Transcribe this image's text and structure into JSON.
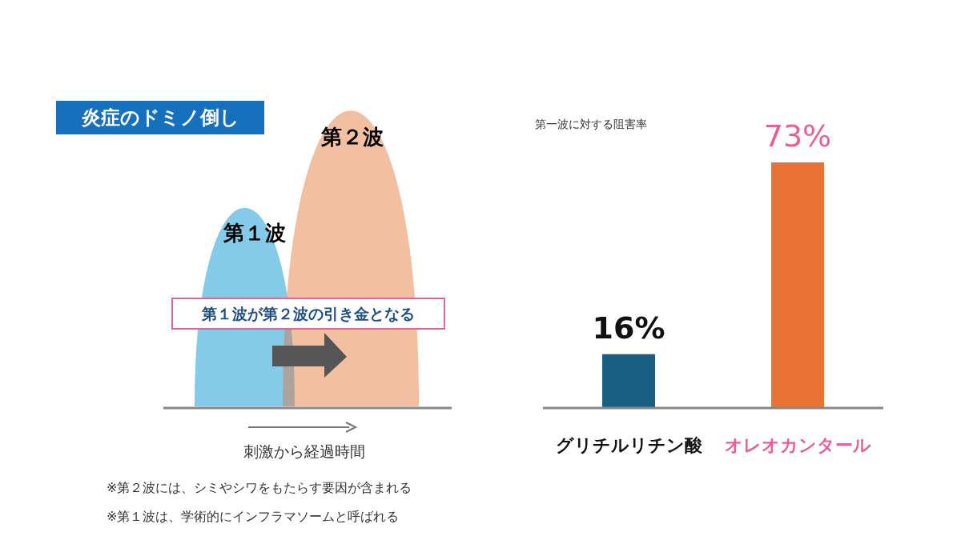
{
  "chart_data": [
    {
      "type": "other",
      "title": "炎症のドミノ倒し",
      "annotations": [
        "第１波",
        "第２波",
        "第１波が第２波の引き金となる",
        "刺激から経過時間",
        "※第２波には、シミやシワをもたらす要因が含まれる",
        "※第１波は、学術的にインフラマソームと呼ばれる"
      ]
    },
    {
      "type": "bar",
      "title": "第一波に対する阻害率",
      "categories": [
        "グリチルリチン酸",
        "オレオカンタール"
      ],
      "values": [
        16,
        73
      ],
      "colors": [
        "#195f84",
        "#e87334"
      ],
      "value_labels": [
        "16%",
        "73%"
      ]
    }
  ]
}
